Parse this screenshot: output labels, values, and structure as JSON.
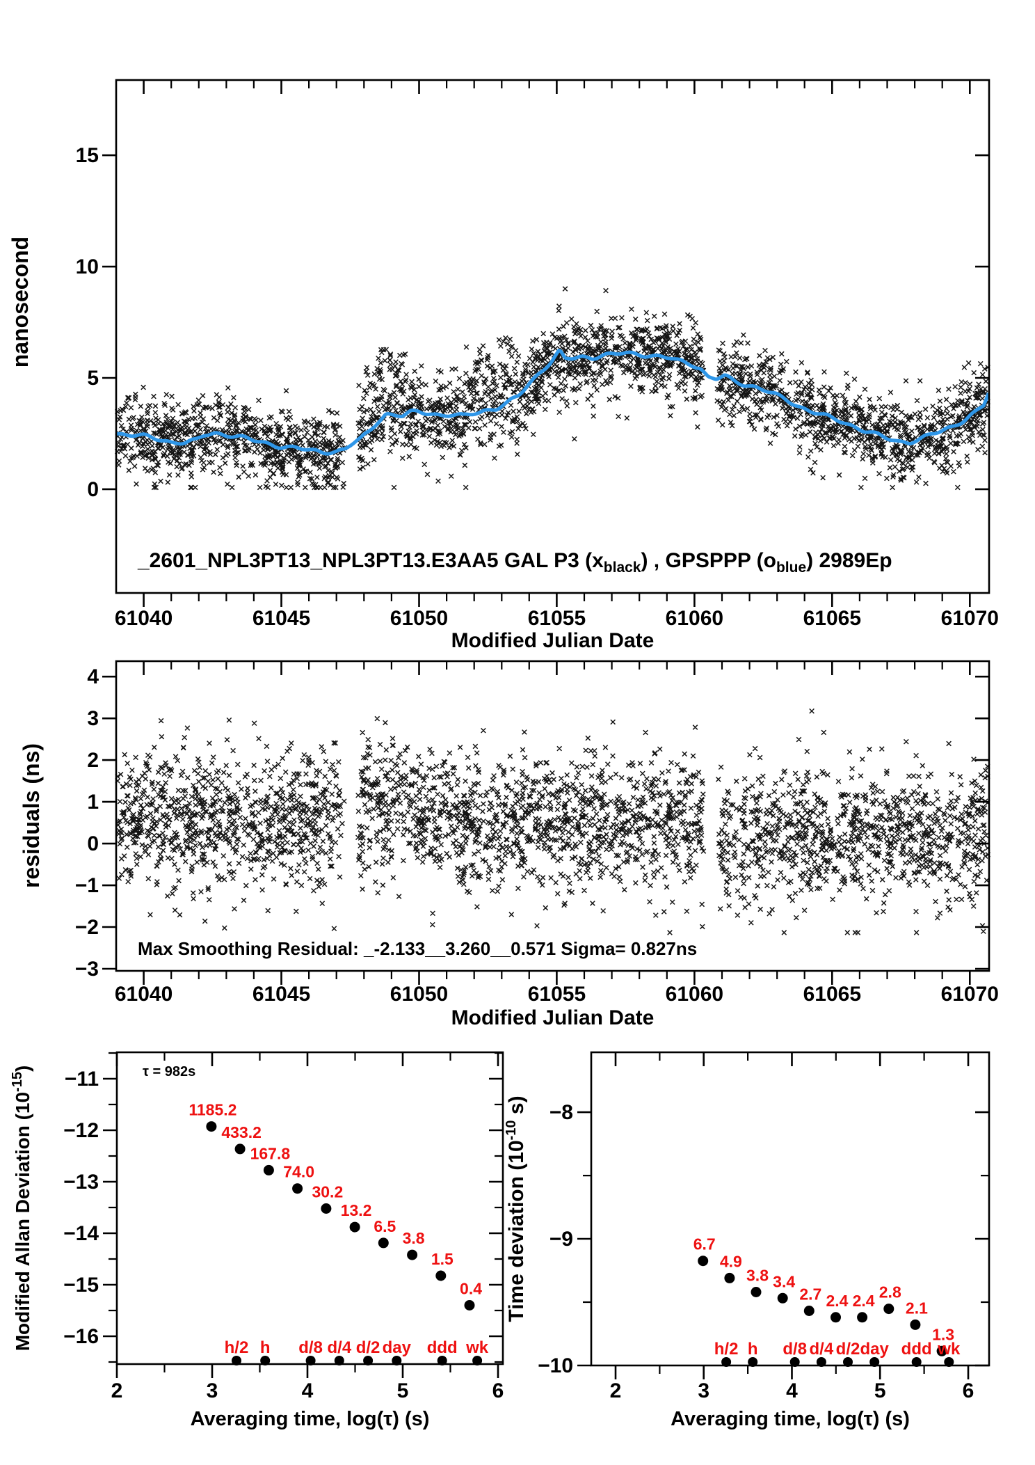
{
  "figure": {
    "background": "#ffffff",
    "colors": {
      "data_black": "#000000",
      "smoothed_blue": "#2E96E8",
      "label_red": "#EE1111"
    }
  },
  "chart_data": [
    {
      "type": "scatter",
      "panel": "phase-comparison",
      "title_segments": [
        {
          "t": "_2601_NPL3PT13_NPL3PT13.E3AA5     GAL P3 (x",
          "sub": false
        },
        {
          "t": "black",
          "sub": true
        },
        {
          "t": ") ,  GPSPPP (o",
          "sub": false
        },
        {
          "t": "blue",
          "sub": true
        },
        {
          "t": ")  2989Ep",
          "sub": false
        }
      ],
      "xlabel": "Modified Julian Date",
      "ylabel": "nanosecond",
      "x_range": [
        61039,
        61070.7
      ],
      "y_range": [
        -4.66,
        18.38
      ],
      "x_tick_labels": [
        "61040",
        "61045",
        "61050",
        "61055",
        "61060",
        "61065",
        "61070"
      ],
      "x_tick_values": [
        61040,
        61045,
        61050,
        61055,
        61060,
        61065,
        61070
      ],
      "y_tick_labels": [
        "0",
        "5",
        "10",
        "15"
      ],
      "y_tick_values": [
        0,
        5,
        10,
        15
      ],
      "series": [
        {
          "name": "GAL P3",
          "marker": "x",
          "color": "#000000"
        },
        {
          "name": "GPSPPP smoothed",
          "marker": "line",
          "color": "#2E96E8"
        }
      ],
      "smoothed_line": [
        [
          61039.0,
          2.5
        ],
        [
          61039.5,
          2.45
        ],
        [
          61040.0,
          2.38
        ],
        [
          61040.5,
          2.25
        ],
        [
          61041.0,
          2.12
        ],
        [
          61041.5,
          2.1
        ],
        [
          61041.9,
          2.18
        ],
        [
          61042.2,
          2.42
        ],
        [
          61042.6,
          2.52
        ],
        [
          61043.0,
          2.45
        ],
        [
          61043.5,
          2.35
        ],
        [
          61044.0,
          2.18
        ],
        [
          61044.5,
          2.05
        ],
        [
          61045.0,
          1.92
        ],
        [
          61045.5,
          1.85
        ],
        [
          61046.0,
          1.75
        ],
        [
          61046.5,
          1.68
        ],
        [
          61047.0,
          1.7
        ],
        [
          61047.3,
          1.78
        ],
        [
          61047.6,
          2.05
        ],
        [
          61047.9,
          2.28
        ],
        [
          61048.2,
          2.62
        ],
        [
          61048.5,
          3.05
        ],
        [
          61048.8,
          3.38
        ],
        [
          61049.1,
          3.32
        ],
        [
          61049.4,
          3.28
        ],
        [
          61049.7,
          3.45
        ],
        [
          61050.0,
          3.48
        ],
        [
          61050.4,
          3.42
        ],
        [
          61050.8,
          3.32
        ],
        [
          61051.2,
          3.32
        ],
        [
          61051.6,
          3.28
        ],
        [
          61052.0,
          3.42
        ],
        [
          61052.4,
          3.55
        ],
        [
          61052.8,
          3.62
        ],
        [
          61053.2,
          3.85
        ],
        [
          61053.6,
          4.18
        ],
        [
          61054.0,
          4.75
        ],
        [
          61054.4,
          5.28
        ],
        [
          61054.8,
          5.72
        ],
        [
          61055.1,
          6.18
        ],
        [
          61055.3,
          5.85
        ],
        [
          61055.6,
          5.88
        ],
        [
          61055.9,
          5.95
        ],
        [
          61056.3,
          5.92
        ],
        [
          61056.7,
          6.02
        ],
        [
          61057.1,
          6.05
        ],
        [
          61057.5,
          6.12
        ],
        [
          61057.9,
          6.08
        ],
        [
          61058.3,
          6.02
        ],
        [
          61058.7,
          5.95
        ],
        [
          61059.1,
          5.88
        ],
        [
          61059.5,
          5.75
        ],
        [
          61059.9,
          5.62
        ],
        [
          61060.2,
          5.45
        ],
        [
          61060.5,
          5.02
        ],
        [
          61060.8,
          4.95
        ],
        [
          61061.1,
          5.08
        ],
        [
          61061.4,
          4.88
        ],
        [
          61061.8,
          4.72
        ],
        [
          61062.2,
          4.6
        ],
        [
          61062.6,
          4.42
        ],
        [
          61063.0,
          4.2
        ],
        [
          61063.4,
          3.98
        ],
        [
          61063.8,
          3.72
        ],
        [
          61064.2,
          3.52
        ],
        [
          61064.6,
          3.35
        ],
        [
          61065.0,
          3.18
        ],
        [
          61065.4,
          3.02
        ],
        [
          61065.8,
          2.82
        ],
        [
          61066.2,
          2.62
        ],
        [
          61066.6,
          2.45
        ],
        [
          61067.0,
          2.28
        ],
        [
          61067.4,
          2.15
        ],
        [
          61067.8,
          2.12
        ],
        [
          61068.2,
          2.25
        ],
        [
          61068.6,
          2.45
        ],
        [
          61069.0,
          2.62
        ],
        [
          61069.4,
          2.85
        ],
        [
          61069.8,
          3.12
        ],
        [
          61070.2,
          3.45
        ],
        [
          61070.5,
          3.75
        ],
        [
          61070.69,
          4.35
        ]
      ],
      "scatter_profile": {
        "n_points": 3200,
        "noise_sd": 0.85,
        "seed": 42,
        "gaps": [
          [
            61047.3,
            61047.78
          ],
          [
            61060.33,
            61060.82
          ]
        ],
        "up_clusters": [
          {
            "range": [
              61047.95,
              61049.55
            ],
            "prob": 0.4,
            "offset_mean": 2.1,
            "offset_sd": 0.55
          },
          {
            "range": [
              61051.7,
              61053.7
            ],
            "prob": 0.33,
            "offset_mean": 1.9,
            "offset_sd": 0.6
          }
        ],
        "down_outlier_prob": 0.045,
        "y_clamp": [
          0.08,
          9.0
        ]
      }
    },
    {
      "type": "scatter",
      "panel": "residuals",
      "annotation": "Max Smoothing Residual: _-2.133__3.260__0.571  Sigma= 0.827ns",
      "xlabel": "Modified Julian Date",
      "ylabel": "residuals (ns)",
      "x_range": [
        61039,
        61070.7
      ],
      "y_range": [
        -3.05,
        4.37
      ],
      "x_tick_labels": [
        "61040",
        "61045",
        "61050",
        "61055",
        "61060",
        "61065",
        "61070"
      ],
      "x_tick_values": [
        61040,
        61045,
        61050,
        61055,
        61060,
        61065,
        61070
      ],
      "y_tick_labels": [
        "4",
        "3",
        "2",
        "1",
        "0",
        "−1",
        "−2",
        "−3"
      ],
      "y_tick_values": [
        4,
        3,
        2,
        1,
        0,
        -1,
        -2,
        -3
      ],
      "stats": {
        "min": -2.133,
        "max": 3.26,
        "mid": 0.571,
        "sigma_ns": 0.827
      },
      "scatter_profile": {
        "n_points": 3200,
        "mean": 0.6,
        "sd": 0.8,
        "seed": 777,
        "clip": [
          -2.133,
          3.26
        ],
        "gaps": [
          [
            61047.3,
            61047.78
          ],
          [
            61060.33,
            61060.82
          ]
        ],
        "up_clusters": [
          {
            "range": [
              61047.95,
              61049.55
            ],
            "prob": 0.38,
            "offset_mean": 1.55,
            "offset_sd": 0.55
          }
        ],
        "right_mean_after": 61060.8,
        "right_mean": 0.25,
        "down_outlier_prob": 0.03
      }
    },
    {
      "type": "scatter",
      "panel": "modified-allan-deviation",
      "tau_annotation": "τ = 982s",
      "xlabel": "Averaging time, log(τ) (s)",
      "ylabel_segments": [
        {
          "t": "Modified Allan Deviation (10",
          "sup": false
        },
        {
          "t": "-15",
          "sup": true
        },
        {
          "t": ")",
          "sup": false
        }
      ],
      "x_range": [
        2,
        6.051
      ],
      "y_range": [
        -16.54,
        -10.486
      ],
      "x_tick_labels": [
        "2",
        "3",
        "4",
        "5",
        "6"
      ],
      "x_tick_values": [
        2,
        3,
        4,
        5,
        6
      ],
      "y_tick_labels": [
        "−11",
        "−12",
        "−13",
        "−14",
        "−15",
        "−16"
      ],
      "y_tick_values": [
        -11,
        -12,
        -13,
        -14,
        -15,
        -16
      ],
      "points": [
        {
          "log_tau": 2.992,
          "label": "1185.2",
          "value_1e15": 1185.2
        },
        {
          "log_tau": 3.293,
          "label": "433.2",
          "value_1e15": 433.2
        },
        {
          "log_tau": 3.594,
          "label": "167.8",
          "value_1e15": 167.8
        },
        {
          "log_tau": 3.895,
          "label": "74.0",
          "value_1e15": 74.0
        },
        {
          "log_tau": 4.196,
          "label": "30.2",
          "value_1e15": 30.2
        },
        {
          "log_tau": 4.497,
          "label": "13.2",
          "value_1e15": 13.2
        },
        {
          "log_tau": 4.798,
          "label": "6.5",
          "value_1e15": 6.5
        },
        {
          "log_tau": 5.099,
          "label": "3.8",
          "value_1e15": 3.8
        },
        {
          "log_tau": 5.4,
          "label": "1.5",
          "value_1e15": 1.5
        },
        {
          "log_tau": 5.701,
          "label": "0.4",
          "value_1e15": 0.4
        }
      ],
      "time_markers": [
        {
          "label": "h/2",
          "log_tau": 3.2553
        },
        {
          "label": "h",
          "log_tau": 3.5563
        },
        {
          "label": "d/8",
          "log_tau": 4.0334
        },
        {
          "label": "d/4",
          "log_tau": 4.3345
        },
        {
          "label": "d/2",
          "log_tau": 4.6355
        },
        {
          "label": "day",
          "log_tau": 4.9365
        },
        {
          "label": "ddd",
          "log_tau": 5.4137
        },
        {
          "label": "wk",
          "log_tau": 5.7817
        }
      ]
    },
    {
      "type": "scatter",
      "panel": "time-deviation",
      "xlabel": "Averaging time, log(τ) (s)",
      "ylabel_segments": [
        {
          "t": "Time deviation (10",
          "sup": false
        },
        {
          "t": "-10",
          "sup": true
        },
        {
          "t": " s)",
          "sup": false
        }
      ],
      "x_range": [
        1.724,
        6.237
      ],
      "y_range": [
        -10.0,
        -7.527
      ],
      "x_tick_labels": [
        "2",
        "3",
        "4",
        "5",
        "6"
      ],
      "x_tick_values": [
        2,
        3,
        4,
        5,
        6
      ],
      "y_tick_labels": [
        "−8",
        "−9",
        "−10"
      ],
      "y_tick_values": [
        -8,
        -9,
        -10
      ],
      "points": [
        {
          "log_tau": 2.992,
          "label": "6.7",
          "value_1e10": 6.7
        },
        {
          "log_tau": 3.293,
          "label": "4.9",
          "value_1e10": 4.9
        },
        {
          "log_tau": 3.594,
          "label": "3.8",
          "value_1e10": 3.8
        },
        {
          "log_tau": 3.895,
          "label": "3.4",
          "value_1e10": 3.4
        },
        {
          "log_tau": 4.196,
          "label": "2.7",
          "value_1e10": 2.7
        },
        {
          "log_tau": 4.497,
          "label": "2.4",
          "value_1e10": 2.4
        },
        {
          "log_tau": 4.798,
          "label": "2.4",
          "value_1e10": 2.4
        },
        {
          "log_tau": 5.099,
          "label": "2.8",
          "value_1e10": 2.8
        },
        {
          "log_tau": 5.4,
          "label": "2.1",
          "value_1e10": 2.1
        },
        {
          "log_tau": 5.701,
          "label": "1.3",
          "value_1e10": 1.3
        }
      ],
      "time_markers": [
        {
          "label": "h/2",
          "log_tau": 3.2553
        },
        {
          "label": "h",
          "log_tau": 3.5563
        },
        {
          "label": "d/8",
          "log_tau": 4.0334
        },
        {
          "label": "d/4",
          "log_tau": 4.3345
        },
        {
          "label": "d/2",
          "log_tau": 4.6355
        },
        {
          "label": "day",
          "log_tau": 4.9365
        },
        {
          "label": "ddd",
          "log_tau": 5.4137
        },
        {
          "label": "wk",
          "log_tau": 5.7817
        }
      ]
    }
  ]
}
